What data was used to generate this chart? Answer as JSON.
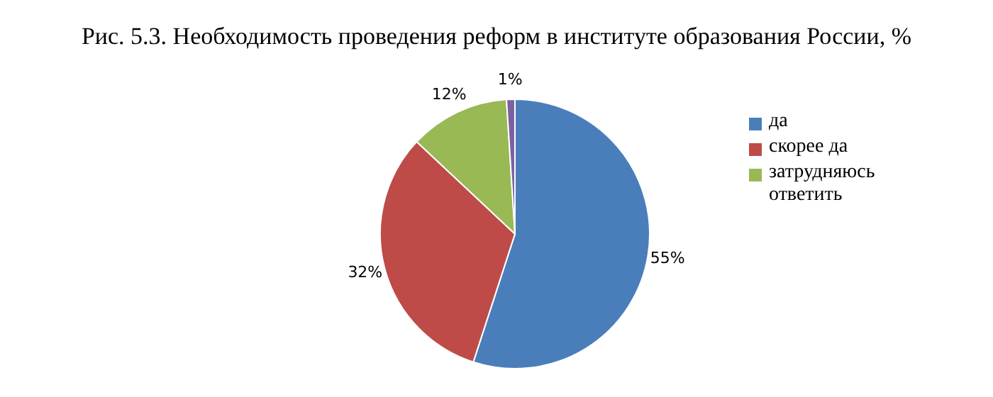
{
  "chart_data": {
    "type": "pie",
    "title": "Рис. 5.3. Необходимость проведения реформ в институте образования России, %",
    "categories": [
      "да",
      "скорее да",
      "затрудняюсь ответить",
      null
    ],
    "values": [
      55,
      32,
      12,
      1
    ],
    "colors": [
      "#4a7ebb",
      "#be4b48",
      "#98b954",
      "#7d60a0"
    ],
    "value_labels": [
      "55%",
      "32%",
      "12%",
      "1%"
    ],
    "legend": "right"
  }
}
